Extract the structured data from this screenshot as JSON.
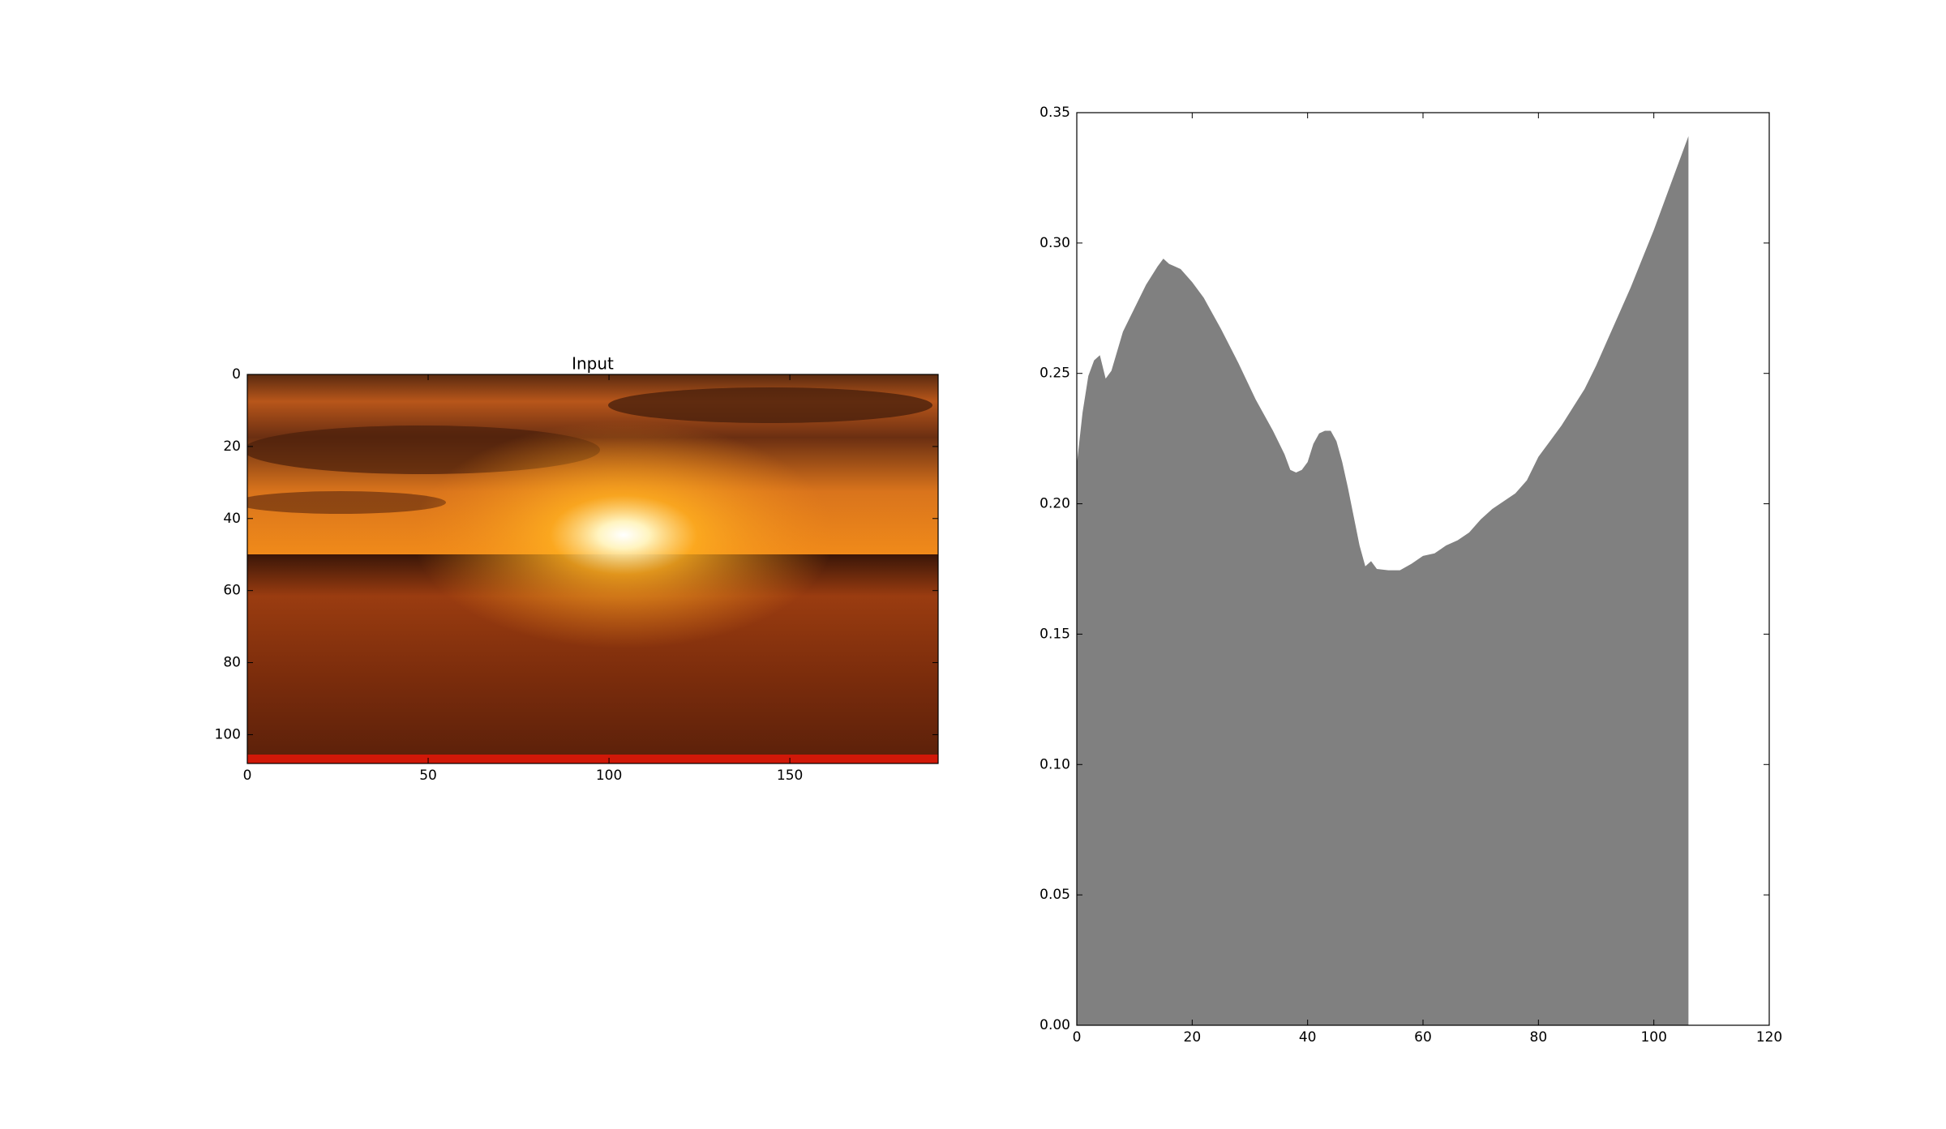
{
  "chart_data": [
    {
      "type": "image",
      "title": "Input",
      "xlim": [
        0,
        191
      ],
      "ylim": [
        108,
        0
      ],
      "xticks": [
        0,
        50,
        100,
        150
      ],
      "yticks": [
        0,
        20,
        40,
        60,
        80,
        100
      ]
    },
    {
      "type": "area",
      "color": "#808080",
      "x": [
        0,
        1,
        2,
        3,
        4,
        5,
        6,
        8,
        10,
        12,
        14,
        15,
        16,
        17,
        18,
        20,
        22,
        25,
        28,
        31,
        34,
        36,
        37,
        38,
        39,
        40,
        41,
        42,
        43,
        44,
        45,
        46,
        47,
        48,
        49,
        50,
        51,
        52,
        54,
        56,
        58,
        60,
        62,
        64,
        66,
        68,
        70,
        72,
        74,
        76,
        78,
        80,
        82,
        84,
        86,
        88,
        90,
        92,
        94,
        96,
        98,
        100,
        102,
        104,
        106
      ],
      "values": [
        0.215,
        0.235,
        0.249,
        0.255,
        0.257,
        0.248,
        0.251,
        0.266,
        0.275,
        0.284,
        0.291,
        0.294,
        0.292,
        0.291,
        0.29,
        0.285,
        0.279,
        0.267,
        0.254,
        0.24,
        0.228,
        0.219,
        0.213,
        0.212,
        0.213,
        0.216,
        0.223,
        0.227,
        0.228,
        0.228,
        0.224,
        0.216,
        0.206,
        0.195,
        0.184,
        0.176,
        0.178,
        0.175,
        0.1745,
        0.1745,
        0.177,
        0.18,
        0.181,
        0.184,
        0.186,
        0.189,
        0.194,
        0.198,
        0.201,
        0.204,
        0.209,
        0.218,
        0.224,
        0.23,
        0.237,
        0.244,
        0.253,
        0.263,
        0.273,
        0.283,
        0.294,
        0.305,
        0.317,
        0.329,
        0.341
      ],
      "xlim": [
        0,
        120
      ],
      "ylim": [
        0,
        0.35
      ],
      "xticks": [
        0,
        20,
        40,
        60,
        80,
        100,
        120
      ],
      "yticks": [
        {
          "value": 0,
          "label": "0.00"
        },
        {
          "value": 0.05,
          "label": "0.05"
        },
        {
          "value": 0.1,
          "label": "0.10"
        },
        {
          "value": 0.15,
          "label": "0.15"
        },
        {
          "value": 0.2,
          "label": "0.20"
        },
        {
          "value": 0.25,
          "label": "0.25"
        },
        {
          "value": 0.3,
          "label": "0.30"
        },
        {
          "value": 0.35,
          "label": "0.35"
        }
      ]
    }
  ]
}
